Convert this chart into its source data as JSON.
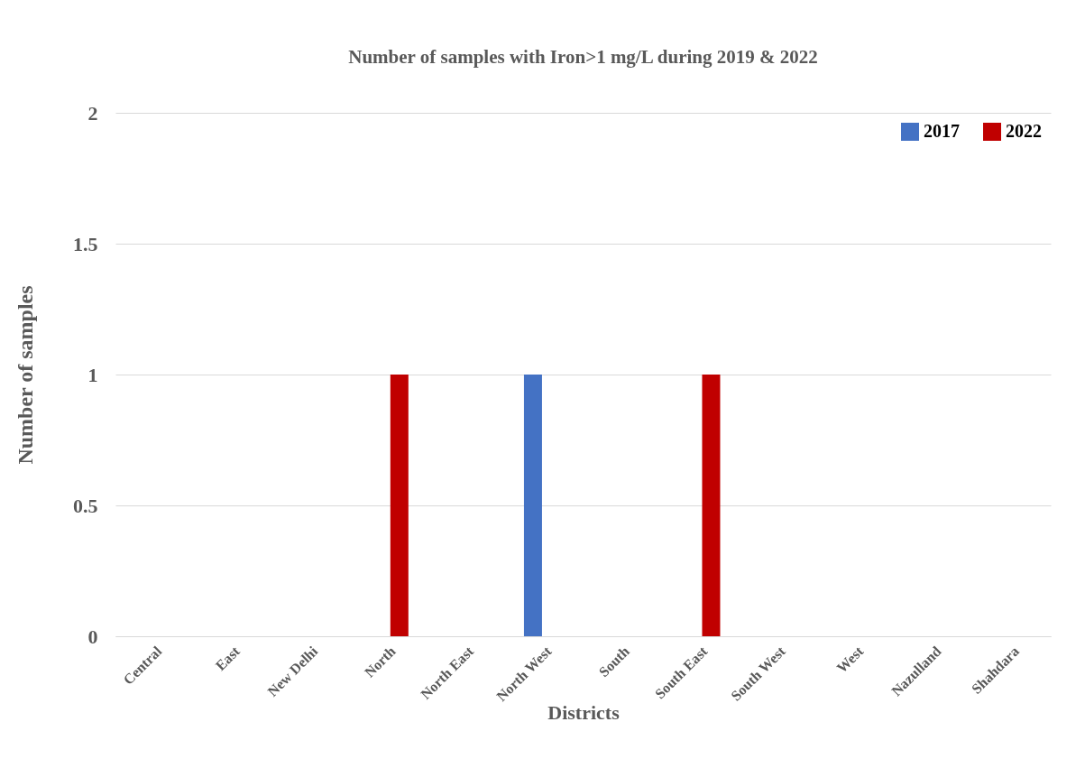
{
  "chart_data": {
    "type": "bar",
    "title": "Number of samples with Iron>1 mg/L during 2019 & 2022",
    "xlabel": "Districts",
    "ylabel": "Number of samples",
    "categories": [
      "Central",
      "East",
      "New Delhi",
      "North",
      "North East",
      "North West",
      "South",
      "South East",
      "South West",
      "West",
      "Nazulland",
      "Shahdara"
    ],
    "series": [
      {
        "name": "2017",
        "color": "#4472c4",
        "values": [
          0,
          0,
          0,
          0,
          0,
          1,
          0,
          0,
          0,
          0,
          0,
          0
        ]
      },
      {
        "name": "2022",
        "color": "#c00000",
        "values": [
          0,
          0,
          0,
          1,
          0,
          0,
          0,
          1,
          0,
          0,
          0,
          0
        ]
      }
    ],
    "ylim": [
      0,
      2
    ],
    "yticks": [
      0,
      0.5,
      1,
      1.5,
      2
    ],
    "grid": "y",
    "legend": "top right"
  }
}
